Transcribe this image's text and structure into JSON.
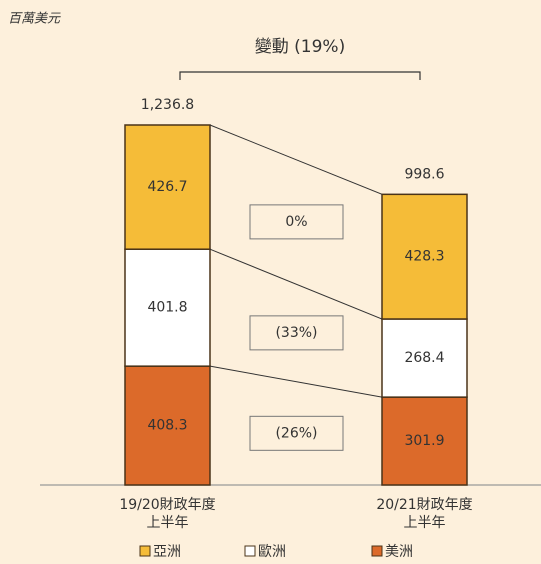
{
  "chart_data": {
    "type": "stacked-bar",
    "unit_label": "百萬美元",
    "change_title": "變動 (19%)",
    "categories": [
      [
        "19/20財政年度",
        "上半年"
      ],
      [
        "20/21財政年度",
        "上半年"
      ]
    ],
    "totals": [
      1236.8,
      998.6
    ],
    "total_labels": [
      "1,236.8",
      "998.6"
    ],
    "series": [
      {
        "name": "美洲",
        "color": "#dc6a2a",
        "values": [
          408.3,
          301.9
        ],
        "change": "(26%)"
      },
      {
        "name": "歐洲",
        "color": "#ffffff",
        "values": [
          401.8,
          268.4
        ],
        "change": "(33%)"
      },
      {
        "name": "亞洲",
        "color": "#f5bc38",
        "values": [
          426.7,
          428.3
        ],
        "change": "0%"
      }
    ],
    "legend_order": [
      2,
      1,
      0
    ]
  }
}
